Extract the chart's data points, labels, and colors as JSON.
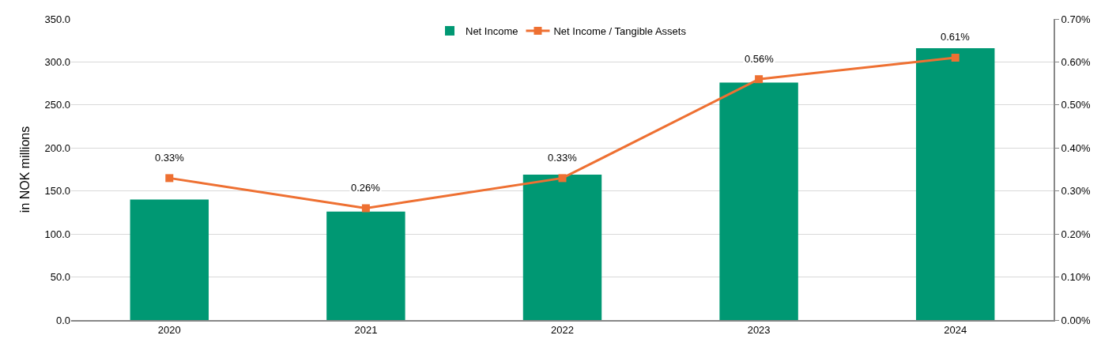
{
  "chart_data": {
    "type": "bar",
    "categories": [
      "2020",
      "2021",
      "2022",
      "2023",
      "2024"
    ],
    "series": [
      {
        "name": "Net Income",
        "color": "#009873",
        "values": [
          140,
          126,
          169,
          276,
          316
        ]
      },
      {
        "name": "Net Income / Tangible Assets",
        "type": "line",
        "axis": "y2",
        "color": "#ee7032",
        "marker": "square",
        "line_style": "solid",
        "value_labels": [
          "0.33%",
          "0.26%",
          "0.33%",
          "0.56%",
          "0.61%"
        ],
        "values": [
          0.33,
          0.26,
          0.33,
          0.56,
          0.61
        ]
      }
    ],
    "ylabel": "in NOK millions",
    "ylim": [
      0,
      350
    ],
    "yticks": [
      {
        "value": 0,
        "label": "0.0"
      },
      {
        "value": 50,
        "label": "50.0"
      },
      {
        "value": 100,
        "label": "100.0"
      },
      {
        "value": 150,
        "label": "150.0"
      },
      {
        "value": 200,
        "label": "200.0"
      },
      {
        "value": 250,
        "label": "250.0"
      },
      {
        "value": 300,
        "label": "300.0"
      },
      {
        "value": 350,
        "label": "350.0"
      }
    ],
    "y2lim": [
      0,
      0.7
    ],
    "y2ticks": [
      {
        "value": 0,
        "label": "0.00%"
      },
      {
        "value": 0.1,
        "label": "0.10%"
      },
      {
        "value": 0.2,
        "label": "0.20%"
      },
      {
        "value": 0.3,
        "label": "0.30%"
      },
      {
        "value": 0.4,
        "label": "0.40%"
      },
      {
        "value": 0.5,
        "label": "0.50%"
      },
      {
        "value": 0.6,
        "label": "0.60%"
      },
      {
        "value": 0.7,
        "label": "0.70%"
      }
    ],
    "grid": "y",
    "legend": "top"
  }
}
